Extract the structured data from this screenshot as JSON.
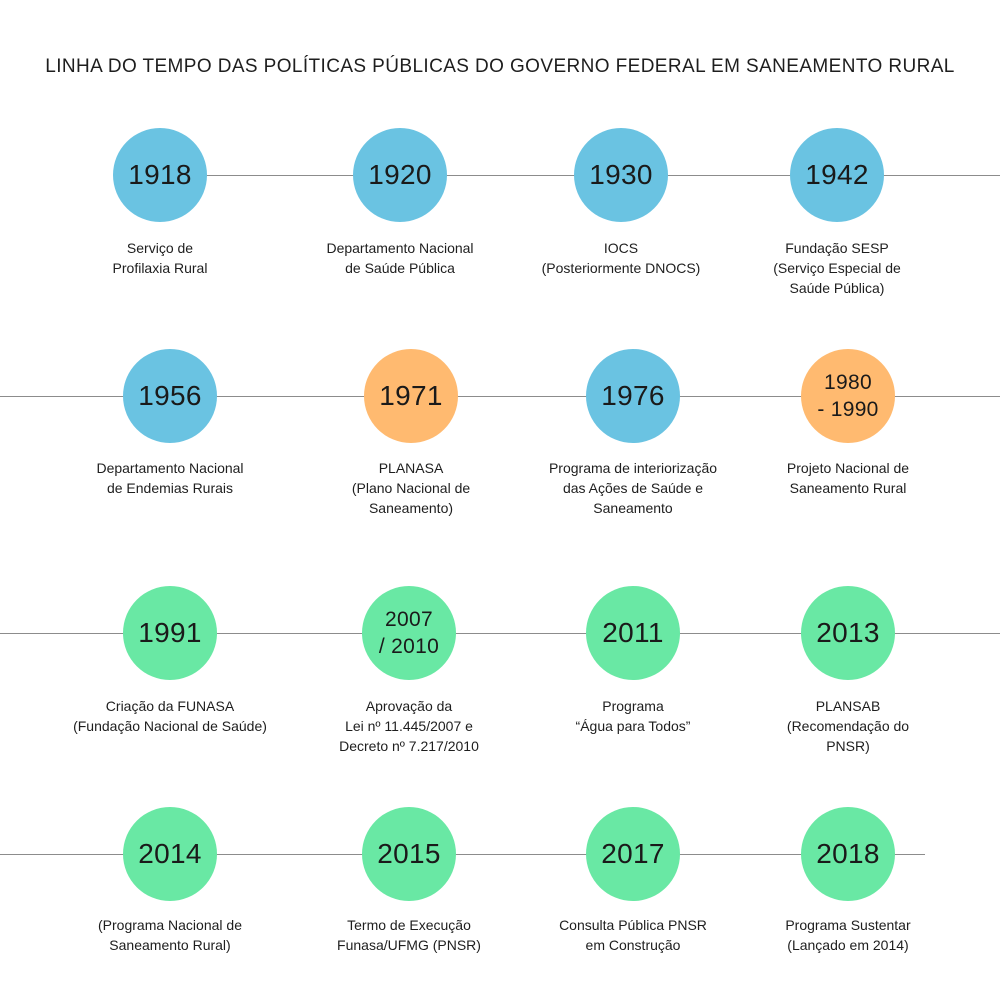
{
  "title": "LINHA DO TEMPO DAS POLÍTICAS PÚBLICAS DO GOVERNO FEDERAL EM SANEAMENTO RURAL",
  "colors": {
    "blue": "#6ac3e2",
    "orange": "#ffba70",
    "green": "#69e8a4",
    "line": "#8c8c8c"
  },
  "rows": [
    {
      "items": [
        {
          "year": "1918",
          "label": "Serviço de\nProfilaxia Rural",
          "color": "blue"
        },
        {
          "year": "1920",
          "label": "Departamento Nacional\nde Saúde Pública",
          "color": "blue"
        },
        {
          "year": "1930",
          "label": "IOCS\n(Posteriormente DNOCS)",
          "color": "blue"
        },
        {
          "year": "1942",
          "label": "Fundação SESP\n(Serviço Especial de\nSaúde Pública)",
          "color": "blue"
        }
      ]
    },
    {
      "items": [
        {
          "year": "1956",
          "label": "Departamento Nacional\nde Endemias Rurais",
          "color": "blue"
        },
        {
          "year": "1971",
          "label": "PLANASA\n(Plano Nacional de\nSaneamento)",
          "color": "orange"
        },
        {
          "year": "1976",
          "label": "Programa de interiorização\ndas Ações de Saúde e\nSaneamento",
          "color": "blue"
        },
        {
          "year": "1980\n- 1990",
          "label": "Projeto Nacional de\nSaneamento Rural",
          "color": "orange"
        }
      ]
    },
    {
      "items": [
        {
          "year": "1991",
          "label": "Criação da FUNASA\n(Fundação Nacional de Saúde)",
          "color": "green"
        },
        {
          "year": "2007\n/ 2010",
          "label": "Aprovação da\nLei nº 11.445/2007 e\nDecreto nº 7.217/2010",
          "color": "green"
        },
        {
          "year": "2011",
          "label": "Programa\n“Água para Todos”",
          "color": "green"
        },
        {
          "year": "2013",
          "label": "PLANSAB\n(Recomendação do\nPNSR)",
          "color": "green"
        }
      ]
    },
    {
      "items": [
        {
          "year": "2014",
          "label": "(Programa Nacional de\nSaneamento Rural)",
          "color": "green"
        },
        {
          "year": "2015",
          "label": "Termo de Execução\nFunasa/UFMG (PNSR)",
          "color": "green"
        },
        {
          "year": "2017",
          "label": "Consulta Pública PNSR\nem Construção",
          "color": "green"
        },
        {
          "year": "2018",
          "label": "Programa Sustentar\n(Lançado em 2014)",
          "color": "green"
        }
      ]
    }
  ]
}
